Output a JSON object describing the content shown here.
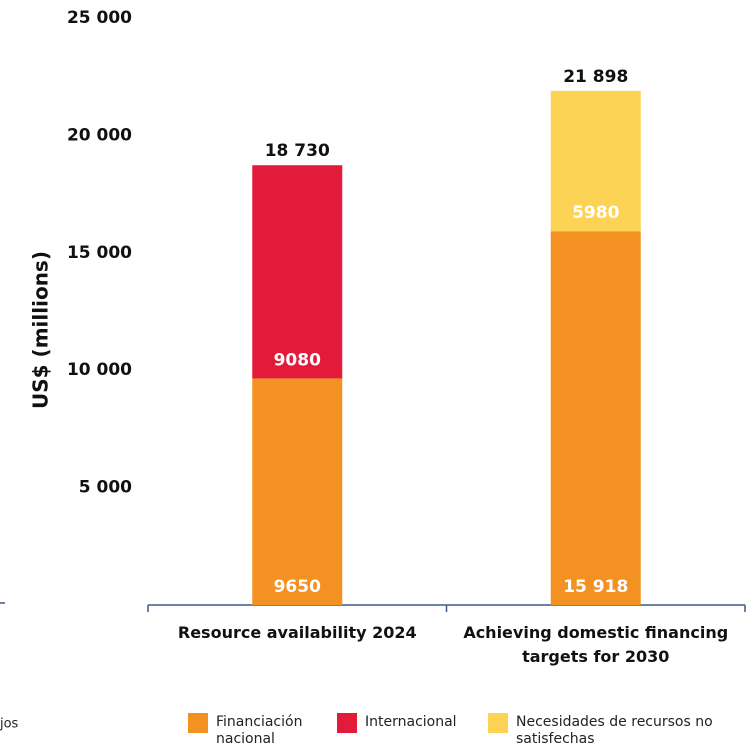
{
  "chart_data": {
    "type": "stacked_bar",
    "y_label": "US$ (millions)",
    "categories": [
      "Resource availability 2024",
      "Achieving domestic financing targets for 2030"
    ],
    "series": [
      {
        "name": "Financiación nacional",
        "color": "#f39122",
        "values": [
          9650,
          15918
        ],
        "value_labels": [
          "9650",
          "15 918"
        ]
      },
      {
        "name": "Internacional",
        "color": "#e31b3a",
        "values": [
          9080,
          null
        ],
        "value_labels": [
          "9080",
          null
        ]
      },
      {
        "name": "Necesidades de recursos no satisfechas",
        "color": "#fdd355",
        "values": [
          null,
          5980
        ],
        "value_labels": [
          null,
          "5980"
        ]
      }
    ],
    "totals": [
      18730,
      21898
    ],
    "total_labels": [
      "18 730",
      "21 898"
    ],
    "ylim": [
      0,
      25000
    ],
    "yticks": [
      {
        "value": 5000,
        "label": "5 000"
      },
      {
        "value": 10000,
        "label": "10 000"
      },
      {
        "value": 15000,
        "label": "15 000"
      },
      {
        "value": 20000,
        "label": "20 000"
      },
      {
        "value": 25000,
        "label": "25 000"
      }
    ],
    "legend": "bottom",
    "annotations": [
      "ajos"
    ]
  }
}
